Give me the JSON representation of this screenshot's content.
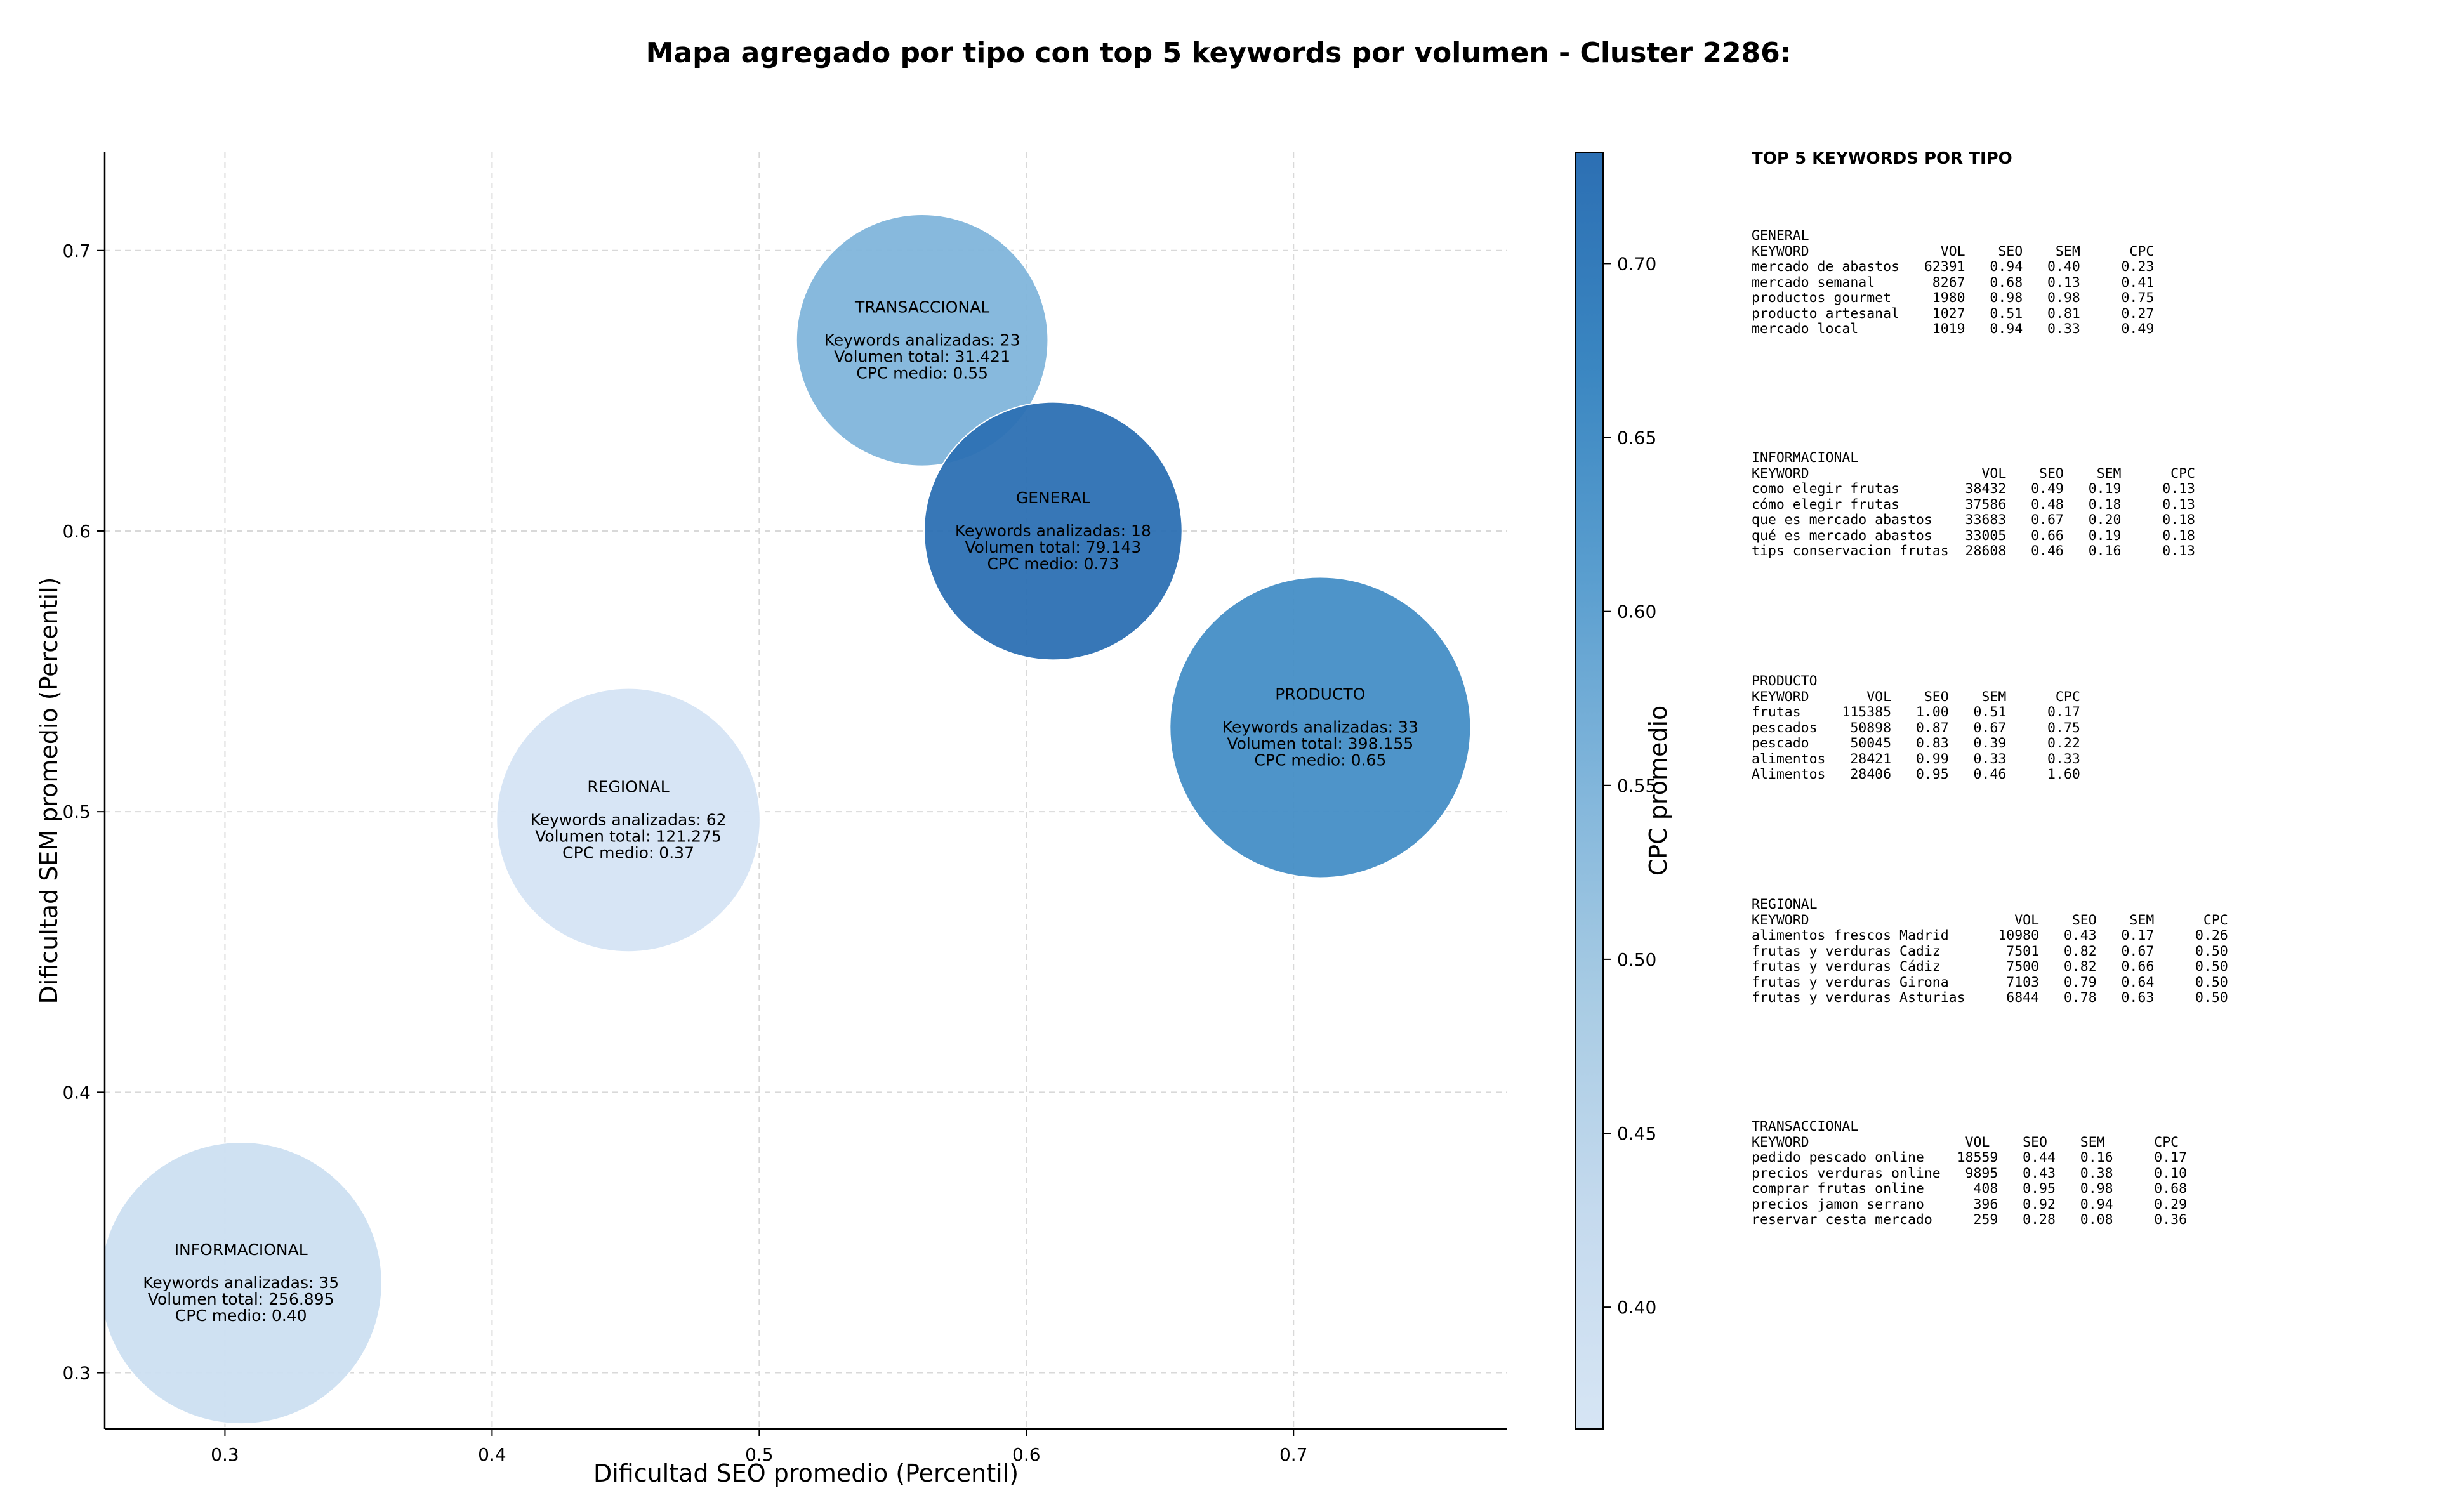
{
  "chart_data": {
    "type": "scatter",
    "title": "Mapa agregado por tipo con top 5 keywords por volumen - Cluster 2286:",
    "xlabel": "Dificultad SEO promedio (Percentil)",
    "ylabel": "Dificultad SEM promedio (Percentil)",
    "xlim": [
      0.255,
      0.78
    ],
    "ylim": [
      0.28,
      0.735
    ],
    "xticks": [
      0.3,
      0.4,
      0.5,
      0.6,
      0.7
    ],
    "yticks": [
      0.3,
      0.4,
      0.5,
      0.6,
      0.7
    ],
    "grid": true,
    "size_encoding": "Volumen total",
    "colorbar": {
      "label": "CPC promedio",
      "min": 0.365,
      "max": 0.732,
      "ticks": [
        0.4,
        0.45,
        0.5,
        0.55,
        0.6,
        0.65,
        0.7
      ],
      "colors": [
        "#d6e5f4",
        "#c5daee",
        "#a9cce4",
        "#82b6db",
        "#5a9ecf",
        "#3a86c1",
        "#2c6fb3"
      ]
    },
    "points": [
      {
        "label": "INFORMACIONAL",
        "x": 0.306,
        "y": 0.332,
        "keywords": 35,
        "volume": 256895,
        "cpc": 0.4,
        "lines": [
          "INFORMACIONAL",
          "",
          "Keywords analizadas: 35",
          "Volumen total: 256.895",
          "CPC medio: 0.40"
        ]
      },
      {
        "label": "REGIONAL",
        "x": 0.451,
        "y": 0.497,
        "keywords": 62,
        "volume": 121275,
        "cpc": 0.37,
        "lines": [
          "REGIONAL",
          "",
          "Keywords analizadas: 62",
          "Volumen total: 121.275",
          "CPC medio: 0.37"
        ]
      },
      {
        "label": "TRANSACCIONAL",
        "x": 0.561,
        "y": 0.668,
        "keywords": 23,
        "volume": 31421,
        "cpc": 0.55,
        "lines": [
          "TRANSACCIONAL",
          "",
          "Keywords analizadas: 23",
          "Volumen total: 31.421",
          "CPC medio: 0.55"
        ]
      },
      {
        "label": "GENERAL",
        "x": 0.61,
        "y": 0.6,
        "keywords": 18,
        "volume": 79143,
        "cpc": 0.73,
        "lines": [
          "GENERAL",
          "",
          "Keywords analizadas: 18",
          "Volumen total: 79.143",
          "CPC medio: 0.73"
        ]
      },
      {
        "label": "PRODUCTO",
        "x": 0.71,
        "y": 0.53,
        "keywords": 33,
        "volume": 398155,
        "cpc": 0.65,
        "lines": [
          "PRODUCTO",
          "",
          "Keywords analizadas: 33",
          "Volumen total: 398.155",
          "CPC medio: 0.65"
        ]
      }
    ],
    "side_panel": {
      "title": "TOP 5 KEYWORDS POR TIPO",
      "blocks": [
        {
          "name": "GENERAL",
          "text": "GENERAL\nKEYWORD                VOL    SEO    SEM      CPC\nmercado de abastos   62391   0.94   0.40     0.23\nmercado semanal       8267   0.68   0.13     0.41\nproductos gourmet     1980   0.98   0.98     0.75\nproducto artesanal    1027   0.51   0.81     0.27\nmercado local         1019   0.94   0.33     0.49"
        },
        {
          "name": "INFORMACIONAL",
          "text": "INFORMACIONAL\nKEYWORD                     VOL    SEO    SEM      CPC\ncomo elegir frutas        38432   0.49   0.19     0.13\ncómo elegir frutas        37586   0.48   0.18     0.13\nque es mercado abastos    33683   0.67   0.20     0.18\nqué es mercado abastos    33005   0.66   0.19     0.18\ntips conservacion frutas  28608   0.46   0.16     0.13"
        },
        {
          "name": "PRODUCTO",
          "text": "PRODUCTO\nKEYWORD       VOL    SEO    SEM      CPC\nfrutas     115385   1.00   0.51     0.17\npescados    50898   0.87   0.67     0.75\npescado     50045   0.83   0.39     0.22\nalimentos   28421   0.99   0.33     0.33\nAlimentos   28406   0.95   0.46     1.60"
        },
        {
          "name": "REGIONAL",
          "text": "REGIONAL\nKEYWORD                         VOL    SEO    SEM      CPC\nalimentos frescos Madrid      10980   0.43   0.17     0.26\nfrutas y verduras Cadiz        7501   0.82   0.67     0.50\nfrutas y verduras Cádiz        7500   0.82   0.66     0.50\nfrutas y verduras Girona       7103   0.79   0.64     0.50\nfrutas y verduras Asturias     6844   0.78   0.63     0.50"
        },
        {
          "name": "TRANSACCIONAL",
          "text": "TRANSACCIONAL\nKEYWORD                   VOL    SEO    SEM      CPC\npedido pescado online    18559   0.44   0.16     0.17\nprecios verduras online   9895   0.43   0.38     0.10\ncomprar frutas online      408   0.95   0.98     0.68\nprecios jamon serrano      396   0.92   0.94     0.29\nreservar cesta mercado     259   0.28   0.08     0.36"
        }
      ]
    }
  }
}
